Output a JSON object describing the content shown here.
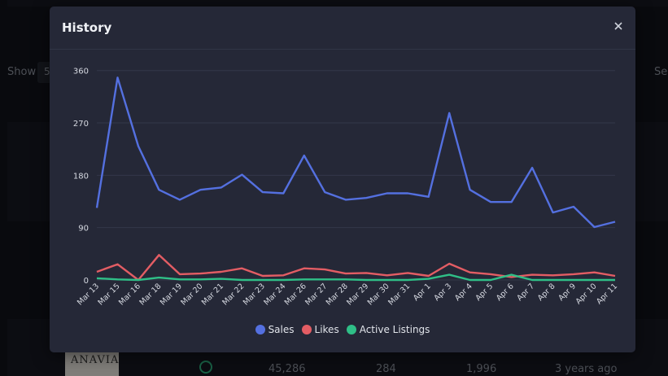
{
  "background": {
    "show_label": "Show",
    "show_value": "5",
    "search_label": "Se",
    "row": {
      "logo_text": "ANAVIA",
      "sales": "45,286",
      "likes": "284",
      "listings": "1,996",
      "age": "3 years ago"
    }
  },
  "modal": {
    "title": "History",
    "close_icon": "close-icon"
  },
  "colors": {
    "sales": "#5470e0",
    "likes": "#e35d64",
    "active_listings": "#2fbf87"
  },
  "chart_data": {
    "type": "line",
    "categories": [
      "Mar 13",
      "Mar 15",
      "Mar 16",
      "Mar 18",
      "Mar 19",
      "Mar 20",
      "Mar 21",
      "Mar 22",
      "Mar 23",
      "Mar 24",
      "Mar 26",
      "Mar 27",
      "Mar 28",
      "Mar 29",
      "Mar 30",
      "Mar 31",
      "Apr 1",
      "Apr 3",
      "Apr 4",
      "Apr 5",
      "Apr 6",
      "Apr 7",
      "Apr 8",
      "Apr 9",
      "Apr 10",
      "Apr 11"
    ],
    "yticks": [
      0,
      90,
      180,
      270,
      360
    ],
    "ylim": [
      0,
      375
    ],
    "grid": true,
    "legend": "bottom",
    "series": [
      {
        "name": "Sales",
        "color": "#5470e0",
        "values": [
          124,
          348,
          230,
          155,
          138,
          155,
          159,
          181,
          151,
          149,
          214,
          151,
          138,
          141,
          149,
          149,
          143,
          287,
          155,
          134,
          134,
          193,
          116,
          126,
          91,
          100
        ]
      },
      {
        "name": "Likes",
        "color": "#e35d64",
        "values": [
          14,
          27,
          0,
          43,
          10,
          11,
          14,
          20,
          7,
          8,
          20,
          18,
          11,
          12,
          8,
          12,
          7,
          28,
          13,
          10,
          5,
          9,
          8,
          10,
          13,
          7
        ]
      },
      {
        "name": "Active Listings",
        "color": "#2fbf87",
        "values": [
          3,
          1,
          0,
          4,
          1,
          1,
          2,
          0,
          0,
          0,
          1,
          1,
          1,
          0,
          0,
          0,
          2,
          9,
          0,
          0,
          9,
          0,
          0,
          0,
          0,
          0
        ]
      }
    ]
  }
}
